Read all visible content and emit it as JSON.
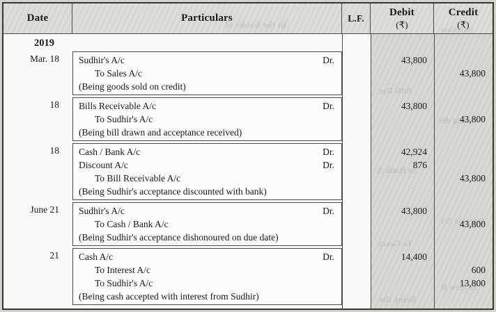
{
  "header": {
    "date": "Date",
    "particulars": "Particulars",
    "lf": "L.F.",
    "debit": "Debit",
    "credit": "Credit",
    "currency": "(₹)"
  },
  "year": "2019",
  "labels": {
    "dr": "Dr."
  },
  "entries": [
    {
      "date": "Mar. 18",
      "lines": [
        {
          "text": "Sudhir's A/c",
          "kind": "dr",
          "debit": "43,800",
          "credit": ""
        },
        {
          "text": "To Sales A/c",
          "kind": "to",
          "debit": "",
          "credit": "43,800"
        },
        {
          "text": "(Being goods sold on credit)",
          "kind": "narr",
          "debit": "",
          "credit": ""
        }
      ]
    },
    {
      "date": "18",
      "lines": [
        {
          "text": "Bills Receivable A/c",
          "kind": "dr",
          "debit": "43,800",
          "credit": ""
        },
        {
          "text": "To Sudhir's A/c",
          "kind": "to",
          "debit": "",
          "credit": "43,800"
        },
        {
          "text": "(Being bill drawn and acceptance received)",
          "kind": "narr",
          "debit": "",
          "credit": ""
        }
      ]
    },
    {
      "date": "18",
      "lines": [
        {
          "text": "Cash / Bank A/c",
          "kind": "dr",
          "debit": "42,924",
          "credit": ""
        },
        {
          "text": "Discount A/c",
          "kind": "dr",
          "debit": "876",
          "credit": ""
        },
        {
          "text": "To Bill Receivable A/c",
          "kind": "to",
          "debit": "",
          "credit": "43,800"
        },
        {
          "text": "(Being Sudhir's acceptance discounted with bank)",
          "kind": "narr",
          "debit": "",
          "credit": ""
        }
      ]
    },
    {
      "date": "June 21",
      "lines": [
        {
          "text": "Sudhir's A/c",
          "kind": "dr",
          "debit": "43,800",
          "credit": ""
        },
        {
          "text": "To Cash / Bank A/c",
          "kind": "to",
          "debit": "",
          "credit": "43,800"
        },
        {
          "text": "(Being Sudhir's acceptance dishonoured on due date)",
          "kind": "narr",
          "debit": "",
          "credit": ""
        }
      ]
    },
    {
      "date": "21",
      "lines": [
        {
          "text": "Cash A/c",
          "kind": "dr",
          "debit": "14,400",
          "credit": ""
        },
        {
          "text": "To Interest A/c",
          "kind": "to",
          "debit": "",
          "credit": "600"
        },
        {
          "text": "To Sudhir's A/c",
          "kind": "to",
          "debit": "",
          "credit": "13,800"
        },
        {
          "text": "(Being cash accepted with interest from Sudhir)",
          "kind": "narr",
          "debit": "",
          "credit": ""
        }
      ]
    }
  ],
  "ghosts": [
    "in the books of",
    "Solution",
    "Bills Rec",
    "being dis",
    "to Bank A",
    "Interest A/c",
    "To Geeta",
    "To New B",
    "Being the"
  ],
  "colors": {
    "paper": "#f9f9f5",
    "shade": "#d6d7d0",
    "shade_header": "#dadbd4",
    "margin": "#d3d5cd",
    "border": "#353533",
    "rule": "#4a4a47",
    "ink": "#1a1a18"
  }
}
